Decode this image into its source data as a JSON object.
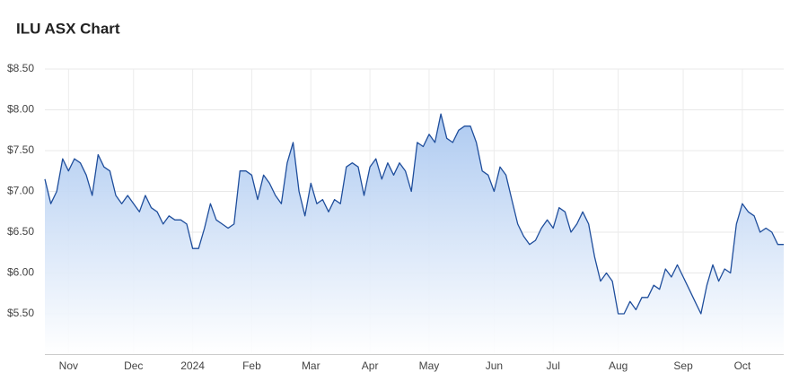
{
  "chart_data": {
    "type": "line",
    "title": "ILU ASX Chart",
    "categories": [
      null,
      null,
      null,
      null,
      "Nov",
      null,
      null,
      null,
      null,
      null,
      null,
      null,
      null,
      null,
      null,
      "Dec",
      null,
      null,
      null,
      null,
      null,
      null,
      null,
      null,
      null,
      "2024",
      null,
      null,
      null,
      null,
      null,
      null,
      null,
      null,
      null,
      "Feb",
      null,
      null,
      null,
      null,
      null,
      null,
      null,
      null,
      null,
      "Mar",
      null,
      null,
      null,
      null,
      null,
      null,
      null,
      null,
      null,
      "Apr",
      null,
      null,
      null,
      null,
      null,
      null,
      null,
      null,
      null,
      "May",
      null,
      null,
      null,
      null,
      null,
      null,
      null,
      null,
      null,
      null,
      "Jun",
      null,
      null,
      null,
      null,
      null,
      null,
      null,
      null,
      null,
      "Jul",
      null,
      null,
      null,
      null,
      null,
      null,
      null,
      null,
      null,
      null,
      "Aug",
      null,
      null,
      null,
      null,
      null,
      null,
      null,
      null,
      null,
      null,
      "Sep",
      null,
      null,
      null,
      null,
      null,
      null,
      null,
      null,
      null,
      "Oct",
      null,
      null,
      null,
      null,
      null,
      null,
      null
    ],
    "series": [
      {
        "color": "#1f4e9c",
        "values": [
          7.15,
          6.85,
          7.0,
          7.4,
          7.25,
          7.4,
          7.35,
          7.2,
          6.95,
          7.45,
          7.3,
          7.25,
          6.95,
          6.85,
          6.95,
          6.85,
          6.75,
          6.95,
          6.8,
          6.75,
          6.6,
          6.7,
          6.65,
          6.65,
          6.6,
          6.3,
          6.3,
          6.55,
          6.85,
          6.65,
          6.6,
          6.55,
          6.6,
          7.25,
          7.25,
          7.2,
          6.9,
          7.2,
          7.1,
          6.95,
          6.85,
          7.35,
          7.6,
          7.0,
          6.7,
          7.1,
          6.85,
          6.9,
          6.75,
          6.9,
          6.85,
          7.3,
          7.35,
          7.3,
          6.95,
          7.3,
          7.4,
          7.15,
          7.35,
          7.2,
          7.35,
          7.25,
          7.0,
          7.6,
          7.55,
          7.7,
          7.6,
          7.95,
          7.65,
          7.6,
          7.75,
          7.8,
          7.8,
          7.6,
          7.25,
          7.2,
          7.0,
          7.3,
          7.2,
          6.9,
          6.6,
          6.45,
          6.35,
          6.4,
          6.55,
          6.65,
          6.55,
          6.8,
          6.75,
          6.5,
          6.6,
          6.75,
          6.6,
          6.2,
          5.9,
          6.0,
          5.9,
          5.5,
          5.5,
          5.65,
          5.55,
          5.7,
          5.7,
          5.85,
          5.8,
          6.05,
          5.95,
          6.1,
          5.95,
          5.8,
          5.65,
          5.5,
          5.85,
          6.1,
          5.9,
          6.05,
          6.0,
          6.6,
          6.85,
          6.75,
          6.7,
          6.5,
          6.55,
          6.5,
          6.35,
          6.35
        ]
      }
    ],
    "ylim": [
      5,
      8.5
    ],
    "yticks": [
      {
        "value": 5.5,
        "label": "$5.50"
      },
      {
        "value": 6,
        "label": "$6.00"
      },
      {
        "value": 6.5,
        "label": "$6.50"
      },
      {
        "value": 7,
        "label": "$7.00"
      },
      {
        "value": 7.5,
        "label": "$7.50"
      },
      {
        "value": 8,
        "label": "$8.00"
      },
      {
        "value": 8.5,
        "label": "$8.50"
      }
    ],
    "grid": true
  }
}
